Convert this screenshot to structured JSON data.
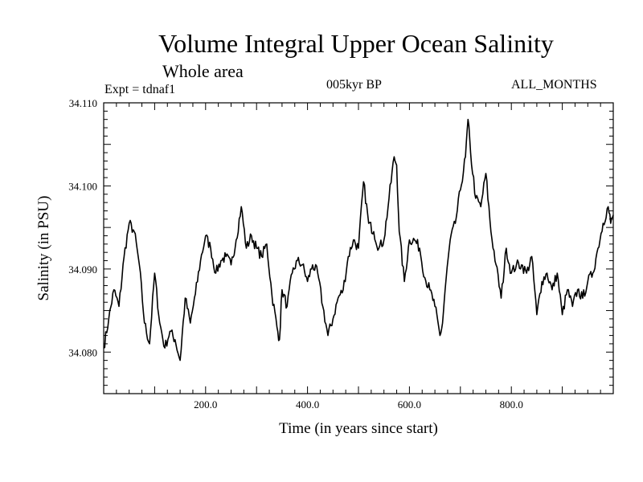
{
  "header": {
    "title": "Volume Integral Upper Ocean Salinity",
    "subtitle": "Whole area",
    "experiment": "Expt = tdnaf1",
    "period": "005kyr BP",
    "months": "ALL_MONTHS"
  },
  "chart_data": {
    "type": "line",
    "title": "Volume Integral Upper Ocean Salinity",
    "subtitle": "Whole area",
    "xlabel": "Time (in years since start)",
    "ylabel": "Salinity (in PSU)",
    "xlim": [
      0,
      1000
    ],
    "ylim": [
      34.075,
      34.11
    ],
    "x_ticks": [
      200,
      400,
      600,
      800
    ],
    "x_tick_labels": [
      "200.0",
      "400.0",
      "600.0",
      "800.0"
    ],
    "y_ticks": [
      34.08,
      34.09,
      34.1,
      34.11
    ],
    "y_tick_labels": [
      "34.080",
      "34.090",
      "34.100",
      "34.110"
    ],
    "grid": false,
    "series": [
      {
        "name": "Upper Ocean Salinity",
        "color": "#000000",
        "x": [
          0,
          10,
          20,
          30,
          40,
          50,
          60,
          70,
          80,
          90,
          100,
          110,
          120,
          130,
          140,
          150,
          160,
          170,
          180,
          190,
          200,
          210,
          220,
          230,
          240,
          250,
          260,
          270,
          280,
          290,
          300,
          310,
          320,
          330,
          340,
          345,
          350,
          360,
          370,
          380,
          390,
          400,
          410,
          420,
          430,
          440,
          450,
          460,
          470,
          480,
          490,
          500,
          510,
          520,
          530,
          540,
          550,
          560,
          570,
          575,
          580,
          590,
          600,
          610,
          620,
          630,
          640,
          650,
          660,
          665,
          670,
          680,
          690,
          700,
          710,
          715,
          720,
          730,
          740,
          750,
          760,
          770,
          780,
          790,
          800,
          810,
          820,
          830,
          840,
          850,
          860,
          870,
          880,
          890,
          900,
          910,
          920,
          930,
          940,
          950,
          960,
          970,
          980,
          990,
          995,
          1000
        ],
        "values": [
          34.0805,
          34.084,
          34.0875,
          34.0855,
          34.0915,
          34.0955,
          34.0945,
          34.0905,
          34.0835,
          34.081,
          34.0895,
          34.0835,
          34.0805,
          34.0825,
          34.0815,
          34.079,
          34.0865,
          34.0835,
          34.087,
          34.091,
          34.094,
          34.0925,
          34.0895,
          34.091,
          34.0915,
          34.0905,
          34.0935,
          34.0975,
          34.0925,
          34.094,
          34.0925,
          34.0915,
          34.093,
          34.087,
          34.083,
          34.0815,
          34.0875,
          34.0855,
          34.0895,
          34.091,
          34.0905,
          34.0885,
          34.0905,
          34.0895,
          34.0855,
          34.082,
          34.084,
          34.0865,
          34.0875,
          34.0915,
          34.0935,
          34.0925,
          34.1005,
          34.0955,
          34.0945,
          34.0925,
          34.0935,
          34.0985,
          34.1035,
          34.1025,
          34.0945,
          34.0885,
          34.0935,
          34.0935,
          34.0925,
          34.089,
          34.0875,
          34.0855,
          34.082,
          34.0835,
          34.0875,
          34.0935,
          34.0955,
          34.0995,
          34.1035,
          34.108,
          34.104,
          34.0985,
          34.0975,
          34.1015,
          34.0945,
          34.0905,
          34.0865,
          34.0925,
          34.0895,
          34.0905,
          34.0905,
          34.0895,
          34.0915,
          34.0845,
          34.0885,
          34.0895,
          34.0875,
          34.0895,
          34.0845,
          34.0875,
          34.0855,
          34.0875,
          34.0865,
          34.0885,
          34.0895,
          34.0925,
          34.0955,
          34.0975,
          34.0955,
          34.0965
        ]
      }
    ]
  }
}
